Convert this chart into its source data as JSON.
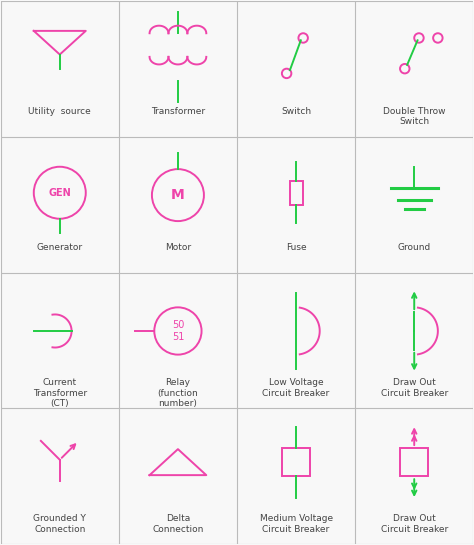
{
  "bg": "#f8f8f8",
  "grid_color": "#bbbbbb",
  "sc": "#ee44aa",
  "lc": "#22cc44",
  "tc": "#444444",
  "lw": 1.4,
  "fig_w": 4.74,
  "fig_h": 5.45,
  "dpi": 100,
  "ncols": 4,
  "nrows": 4,
  "xmin": 0,
  "xmax": 400,
  "ymin": 0,
  "ymax": 460,
  "labels": [
    "Utility  source",
    "Transformer",
    "Switch",
    "Double Throw\nSwitch",
    "Generator",
    "Motor",
    "Fuse",
    "Ground",
    "Current\nTransformer\n(CT)",
    "Relay\n(function\nnumber)",
    "Low Voltage\nCircuit Breaker",
    "Draw Out\nCircuit Breaker",
    "Grounded Y\nConnection",
    "Delta\nConnection",
    "Medium Voltage\nCircuit Breaker",
    "Draw Out\nCircuit Breaker"
  ]
}
